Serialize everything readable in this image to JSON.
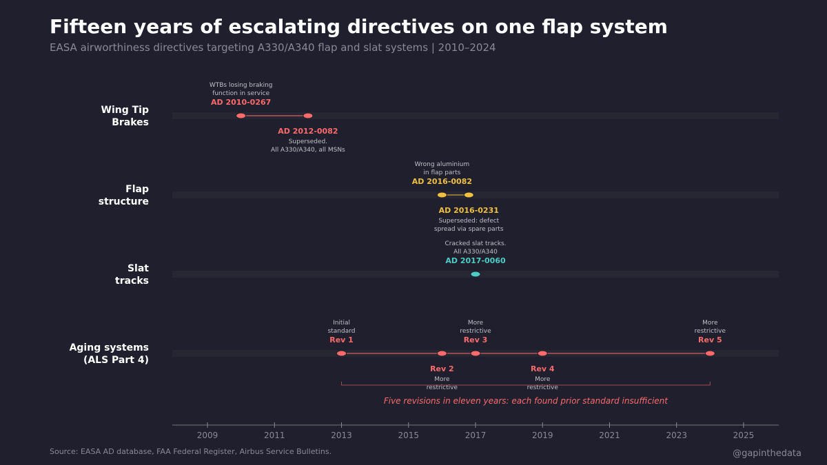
{
  "header": {
    "title": "Fifteen years of escalating directives on one flap system",
    "subtitle": "EASA airworthiness directives targeting A330/A340 flap and slat systems  |  2010–2024"
  },
  "footer": {
    "source": "Source: EASA AD database, FAA Federal Register, Airbus Service Bulletins.",
    "credit": "@gapinthedata"
  },
  "chart_data": {
    "type": "timeline",
    "xlim": [
      2007.95,
      2026.05
    ],
    "xticks": [
      2009,
      2011,
      2013,
      2015,
      2017,
      2019,
      2021,
      2023,
      2025
    ],
    "grid": false,
    "rows": [
      {
        "label": [
          "Wing Tip",
          "Brakes"
        ],
        "color": "#ff6b6b",
        "events": [
          {
            "x": 2010,
            "title": "AD 2010-0267",
            "note": [
              "WTBs losing braking",
              "function in service"
            ],
            "pos": "above"
          },
          {
            "x": 2012,
            "title": "AD 2012-0082",
            "note": [
              "Superseded.",
              "All A330/A340, all MSNs"
            ],
            "pos": "below"
          }
        ]
      },
      {
        "label": [
          "Flap",
          "structure"
        ],
        "color": "#f0c040",
        "events": [
          {
            "x": 2016,
            "title": "AD 2016-0082",
            "note": [
              "Wrong aluminium",
              "in flap parts"
            ],
            "pos": "above"
          },
          {
            "x": 2016.8,
            "title": "AD 2016-0231",
            "note": [
              "Superseded: defect",
              "spread via spare parts"
            ],
            "pos": "below"
          }
        ]
      },
      {
        "label": [
          "Slat",
          "tracks"
        ],
        "color": "#4ecdc4",
        "events": [
          {
            "x": 2017,
            "title": "AD 2017-0060",
            "note": [
              "Cracked slat tracks.",
              "All A330/A340"
            ],
            "pos": "above"
          }
        ]
      },
      {
        "label": [
          "Aging systems",
          "(ALS Part 4)"
        ],
        "color": "#ff6b6b",
        "events": [
          {
            "x": 2013,
            "title": "Rev 1",
            "note": [
              "Initial",
              "standard"
            ],
            "pos": "above"
          },
          {
            "x": 2016,
            "title": "Rev 2",
            "note": [
              "More",
              "restrictive"
            ],
            "pos": "below"
          },
          {
            "x": 2017,
            "title": "Rev 3",
            "note": [
              "More",
              "restrictive"
            ],
            "pos": "above"
          },
          {
            "x": 2019,
            "title": "Rev 4",
            "note": [
              "More",
              "restrictive"
            ],
            "pos": "below"
          },
          {
            "x": 2024,
            "title": "Rev 5",
            "note": [
              "More",
              "restrictive"
            ],
            "pos": "above"
          }
        ]
      }
    ],
    "annotation": {
      "text": "Five revisions in eleven years: each found prior standard insufficient",
      "x_range": [
        2013,
        2024
      ],
      "color": "#ff6b6b"
    }
  }
}
